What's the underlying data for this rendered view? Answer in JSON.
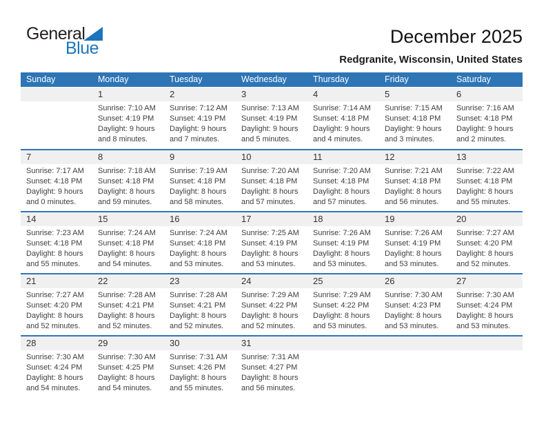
{
  "logo": {
    "word_general": "General",
    "word_blue": "Blue"
  },
  "header": {
    "month_title": "December 2025",
    "location_subtitle": "Redgranite, Wisconsin, United States"
  },
  "colors": {
    "header_blue": "#2E75B6",
    "separator_blue": "#2E75B6",
    "band_gray": "#F0F0F0",
    "logo_blue": "#1C75BC",
    "logo_dark": "#231F20"
  },
  "calendar": {
    "weekday_headers": [
      "Sunday",
      "Monday",
      "Tuesday",
      "Wednesday",
      "Thursday",
      "Friday",
      "Saturday"
    ],
    "weeks": [
      [
        null,
        {
          "day": "1",
          "sunrise": "Sunrise: 7:10 AM",
          "sunset": "Sunset: 4:19 PM",
          "daylight": "Daylight: 9 hours and 8 minutes."
        },
        {
          "day": "2",
          "sunrise": "Sunrise: 7:12 AM",
          "sunset": "Sunset: 4:19 PM",
          "daylight": "Daylight: 9 hours and 7 minutes."
        },
        {
          "day": "3",
          "sunrise": "Sunrise: 7:13 AM",
          "sunset": "Sunset: 4:19 PM",
          "daylight": "Daylight: 9 hours and 5 minutes."
        },
        {
          "day": "4",
          "sunrise": "Sunrise: 7:14 AM",
          "sunset": "Sunset: 4:18 PM",
          "daylight": "Daylight: 9 hours and 4 minutes."
        },
        {
          "day": "5",
          "sunrise": "Sunrise: 7:15 AM",
          "sunset": "Sunset: 4:18 PM",
          "daylight": "Daylight: 9 hours and 3 minutes."
        },
        {
          "day": "6",
          "sunrise": "Sunrise: 7:16 AM",
          "sunset": "Sunset: 4:18 PM",
          "daylight": "Daylight: 9 hours and 2 minutes."
        }
      ],
      [
        {
          "day": "7",
          "sunrise": "Sunrise: 7:17 AM",
          "sunset": "Sunset: 4:18 PM",
          "daylight": "Daylight: 9 hours and 0 minutes."
        },
        {
          "day": "8",
          "sunrise": "Sunrise: 7:18 AM",
          "sunset": "Sunset: 4:18 PM",
          "daylight": "Daylight: 8 hours and 59 minutes."
        },
        {
          "day": "9",
          "sunrise": "Sunrise: 7:19 AM",
          "sunset": "Sunset: 4:18 PM",
          "daylight": "Daylight: 8 hours and 58 minutes."
        },
        {
          "day": "10",
          "sunrise": "Sunrise: 7:20 AM",
          "sunset": "Sunset: 4:18 PM",
          "daylight": "Daylight: 8 hours and 57 minutes."
        },
        {
          "day": "11",
          "sunrise": "Sunrise: 7:20 AM",
          "sunset": "Sunset: 4:18 PM",
          "daylight": "Daylight: 8 hours and 57 minutes."
        },
        {
          "day": "12",
          "sunrise": "Sunrise: 7:21 AM",
          "sunset": "Sunset: 4:18 PM",
          "daylight": "Daylight: 8 hours and 56 minutes."
        },
        {
          "day": "13",
          "sunrise": "Sunrise: 7:22 AM",
          "sunset": "Sunset: 4:18 PM",
          "daylight": "Daylight: 8 hours and 55 minutes."
        }
      ],
      [
        {
          "day": "14",
          "sunrise": "Sunrise: 7:23 AM",
          "sunset": "Sunset: 4:18 PM",
          "daylight": "Daylight: 8 hours and 55 minutes."
        },
        {
          "day": "15",
          "sunrise": "Sunrise: 7:24 AM",
          "sunset": "Sunset: 4:18 PM",
          "daylight": "Daylight: 8 hours and 54 minutes."
        },
        {
          "day": "16",
          "sunrise": "Sunrise: 7:24 AM",
          "sunset": "Sunset: 4:18 PM",
          "daylight": "Daylight: 8 hours and 53 minutes."
        },
        {
          "day": "17",
          "sunrise": "Sunrise: 7:25 AM",
          "sunset": "Sunset: 4:19 PM",
          "daylight": "Daylight: 8 hours and 53 minutes."
        },
        {
          "day": "18",
          "sunrise": "Sunrise: 7:26 AM",
          "sunset": "Sunset: 4:19 PM",
          "daylight": "Daylight: 8 hours and 53 minutes."
        },
        {
          "day": "19",
          "sunrise": "Sunrise: 7:26 AM",
          "sunset": "Sunset: 4:19 PM",
          "daylight": "Daylight: 8 hours and 53 minutes."
        },
        {
          "day": "20",
          "sunrise": "Sunrise: 7:27 AM",
          "sunset": "Sunset: 4:20 PM",
          "daylight": "Daylight: 8 hours and 52 minutes."
        }
      ],
      [
        {
          "day": "21",
          "sunrise": "Sunrise: 7:27 AM",
          "sunset": "Sunset: 4:20 PM",
          "daylight": "Daylight: 8 hours and 52 minutes."
        },
        {
          "day": "22",
          "sunrise": "Sunrise: 7:28 AM",
          "sunset": "Sunset: 4:21 PM",
          "daylight": "Daylight: 8 hours and 52 minutes."
        },
        {
          "day": "23",
          "sunrise": "Sunrise: 7:28 AM",
          "sunset": "Sunset: 4:21 PM",
          "daylight": "Daylight: 8 hours and 52 minutes."
        },
        {
          "day": "24",
          "sunrise": "Sunrise: 7:29 AM",
          "sunset": "Sunset: 4:22 PM",
          "daylight": "Daylight: 8 hours and 52 minutes."
        },
        {
          "day": "25",
          "sunrise": "Sunrise: 7:29 AM",
          "sunset": "Sunset: 4:22 PM",
          "daylight": "Daylight: 8 hours and 53 minutes."
        },
        {
          "day": "26",
          "sunrise": "Sunrise: 7:30 AM",
          "sunset": "Sunset: 4:23 PM",
          "daylight": "Daylight: 8 hours and 53 minutes."
        },
        {
          "day": "27",
          "sunrise": "Sunrise: 7:30 AM",
          "sunset": "Sunset: 4:24 PM",
          "daylight": "Daylight: 8 hours and 53 minutes."
        }
      ],
      [
        {
          "day": "28",
          "sunrise": "Sunrise: 7:30 AM",
          "sunset": "Sunset: 4:24 PM",
          "daylight": "Daylight: 8 hours and 54 minutes."
        },
        {
          "day": "29",
          "sunrise": "Sunrise: 7:30 AM",
          "sunset": "Sunset: 4:25 PM",
          "daylight": "Daylight: 8 hours and 54 minutes."
        },
        {
          "day": "30",
          "sunrise": "Sunrise: 7:31 AM",
          "sunset": "Sunset: 4:26 PM",
          "daylight": "Daylight: 8 hours and 55 minutes."
        },
        {
          "day": "31",
          "sunrise": "Sunrise: 7:31 AM",
          "sunset": "Sunset: 4:27 PM",
          "daylight": "Daylight: 8 hours and 56 minutes."
        },
        null,
        null,
        null
      ]
    ]
  }
}
